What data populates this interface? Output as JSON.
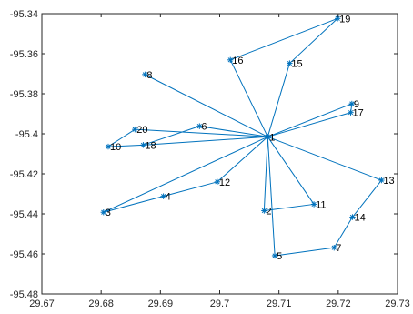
{
  "chart_data": {
    "type": "line",
    "title": "",
    "xlabel": "",
    "ylabel": "",
    "xlim": [
      29.67,
      29.73
    ],
    "ylim": [
      -95.48,
      -95.34
    ],
    "x_ticks": [
      "29.67",
      "29.68",
      "29.69",
      "29.7",
      "29.71",
      "29.72",
      "29.73"
    ],
    "y_ticks": [
      "-95.34",
      "-95.36",
      "-95.38",
      "-95.4",
      "-95.42",
      "-95.44",
      "-95.46",
      "-95.48"
    ],
    "grid": false,
    "marker": "*",
    "series_color": "#0072bd",
    "points": [
      {
        "label": "1",
        "x": 29.7081,
        "y": -95.4015
      },
      {
        "label": "2",
        "x": 29.7075,
        "y": -95.4384
      },
      {
        "label": "3",
        "x": 29.6804,
        "y": -95.4392
      },
      {
        "label": "4",
        "x": 29.6905,
        "y": -95.4312
      },
      {
        "label": "5",
        "x": 29.7093,
        "y": -95.4609
      },
      {
        "label": "6",
        "x": 29.6966,
        "y": -95.3962
      },
      {
        "label": "7",
        "x": 29.7193,
        "y": -95.4569
      },
      {
        "label": "8",
        "x": 29.6874,
        "y": -95.3704
      },
      {
        "label": "9",
        "x": 29.7223,
        "y": -95.385
      },
      {
        "label": "10",
        "x": 29.6812,
        "y": -95.4064
      },
      {
        "label": "11",
        "x": 29.7159,
        "y": -95.4352
      },
      {
        "label": "12",
        "x": 29.6996,
        "y": -95.424
      },
      {
        "label": "13",
        "x": 29.7273,
        "y": -95.4232
      },
      {
        "label": "14",
        "x": 29.7224,
        "y": -95.4416
      },
      {
        "label": "15",
        "x": 29.7118,
        "y": -95.3648
      },
      {
        "label": "16",
        "x": 29.7018,
        "y": -95.3631
      },
      {
        "label": "17",
        "x": 29.7221,
        "y": -95.3894
      },
      {
        "label": "18",
        "x": 29.6871,
        "y": -95.4056
      },
      {
        "label": "19",
        "x": 29.7199,
        "y": -95.3424
      },
      {
        "label": "20",
        "x": 29.6857,
        "y": -95.3978
      }
    ],
    "segments": [
      [
        "1",
        "8"
      ],
      [
        "1",
        "20"
      ],
      [
        "20",
        "10"
      ],
      [
        "10",
        "18"
      ],
      [
        "18",
        "1"
      ],
      [
        "1",
        "6"
      ],
      [
        "6",
        "18"
      ],
      [
        "1",
        "3"
      ],
      [
        "3",
        "4"
      ],
      [
        "4",
        "12"
      ],
      [
        "12",
        "1"
      ],
      [
        "1",
        "2"
      ],
      [
        "2",
        "11"
      ],
      [
        "11",
        "1"
      ],
      [
        "1",
        "5"
      ],
      [
        "5",
        "7"
      ],
      [
        "7",
        "14"
      ],
      [
        "14",
        "13"
      ],
      [
        "13",
        "1"
      ],
      [
        "1",
        "17"
      ],
      [
        "17",
        "9"
      ],
      [
        "9",
        "1"
      ],
      [
        "1",
        "15"
      ],
      [
        "15",
        "19"
      ],
      [
        "19",
        "16"
      ],
      [
        "16",
        "1"
      ]
    ]
  }
}
